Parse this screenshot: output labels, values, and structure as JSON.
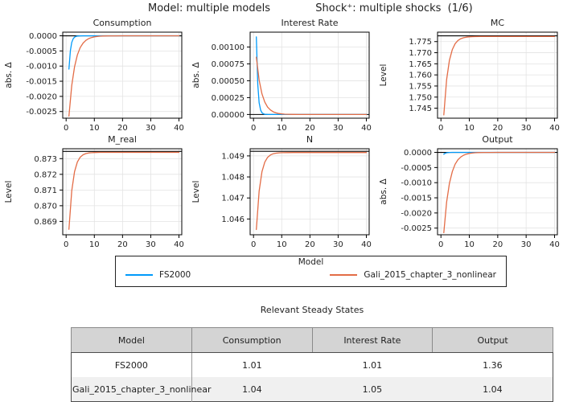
{
  "header": {
    "model_title": "Model: multiple models",
    "shock_title": "Shock⁺: multiple shocks  (1/6)"
  },
  "palette": {
    "blue": "#009AFA",
    "orange": "#E36C46",
    "steady_state": "#000000",
    "grid": "#E3E3E3",
    "frame": "#000000",
    "text": "#1f1f1f"
  },
  "legend": {
    "title": "Model",
    "position": "bottom",
    "entries": [
      {
        "label": "FS2000",
        "color": "blue"
      },
      {
        "label": "Gali_2015_chapter_3_nonlinear",
        "color": "orange"
      }
    ]
  },
  "table": {
    "title": "Relevant Steady States",
    "columns": [
      "Model",
      "Consumption",
      "Interest Rate",
      "Output"
    ],
    "rows": [
      [
        "FS2000",
        "1.01",
        "1.01",
        "1.36"
      ],
      [
        "Gali_2015_chapter_3_nonlinear",
        "1.04",
        "1.05",
        "1.04"
      ]
    ]
  },
  "chart_data": [
    {
      "type": "line",
      "title": "Consumption",
      "ylabel": "abs. Δ",
      "xticks": [
        0,
        10,
        20,
        30,
        40
      ],
      "xlim": [
        -1.2,
        41
      ],
      "yticks": [
        0,
        -0.0005,
        -0.001,
        -0.0015,
        -0.002,
        -0.0025
      ],
      "ytick_labels": [
        "0.0000",
        "-0.0005",
        "-0.0010",
        "-0.0015",
        "-0.0020",
        "-0.0025"
      ],
      "ylim": [
        -0.00272,
        0.00012
      ],
      "grid": true,
      "steady_state": 0,
      "series": [
        {
          "name": "FS2000",
          "color": "blue",
          "points": [
            [
              1,
              -0.0011
            ],
            [
              1.5,
              -0.00049
            ],
            [
              2,
              -0.00022
            ],
            [
              2.5,
              -9.8e-05
            ],
            [
              3,
              -4.4e-05
            ],
            [
              3.5,
              -2e-05
            ],
            [
              4,
              -8.8e-06
            ],
            [
              5,
              -1.8e-06
            ],
            [
              6,
              0
            ],
            [
              40,
              0
            ]
          ]
        },
        {
          "name": "Gali_2015_chapter_3_nonlinear",
          "color": "orange",
          "points": [
            [
              1,
              -0.00265
            ],
            [
              2,
              -0.00164
            ],
            [
              3,
              -0.00102
            ],
            [
              4,
              -0.00063
            ],
            [
              5,
              -0.00039
            ],
            [
              6,
              -0.000242
            ],
            [
              7,
              -0.00015
            ],
            [
              8,
              -9.3e-05
            ],
            [
              9,
              -5.8e-05
            ],
            [
              10,
              -3.6e-05
            ],
            [
              11,
              -2.2e-05
            ],
            [
              12,
              -1.4e-05
            ],
            [
              13,
              -8.6e-06
            ],
            [
              15,
              -3.3e-06
            ],
            [
              17,
              -1.3e-06
            ],
            [
              20,
              0
            ],
            [
              40,
              0
            ]
          ]
        }
      ]
    },
    {
      "type": "line",
      "title": "Interest Rate",
      "ylabel": "abs. Δ",
      "xticks": [
        0,
        10,
        20,
        30,
        40
      ],
      "xlim": [
        -1.2,
        41
      ],
      "yticks": [
        0,
        0.00025,
        0.0005,
        0.00075,
        0.001
      ],
      "ytick_labels": [
        "0.00000",
        "0.00025",
        "0.00050",
        "0.00075",
        "0.00100"
      ],
      "ylim": [
        -5.5e-05,
        0.00122
      ],
      "grid": true,
      "steady_state": 0,
      "series": [
        {
          "name": "FS2000",
          "color": "blue",
          "points": [
            [
              1,
              0.00115
            ],
            [
              1.5,
              0.000445
            ],
            [
              2,
              0.000172
            ],
            [
              2.5,
              6.67e-05
            ],
            [
              3,
              2.59e-05
            ],
            [
              3.5,
              1e-05
            ],
            [
              4,
              3.9e-06
            ],
            [
              5,
              6e-07
            ],
            [
              6,
              0
            ],
            [
              40,
              0
            ]
          ]
        },
        {
          "name": "Gali_2015_chapter_3_nonlinear",
          "color": "orange",
          "points": [
            [
              1,
              0.00085
            ],
            [
              2,
              0.00051
            ],
            [
              3,
              0.000306
            ],
            [
              4,
              0.000184
            ],
            [
              5,
              0.00011
            ],
            [
              6,
              6.61e-05
            ],
            [
              7,
              3.97e-05
            ],
            [
              8,
              2.38e-05
            ],
            [
              9,
              1.43e-05
            ],
            [
              10,
              8.6e-06
            ],
            [
              11,
              5.1e-06
            ],
            [
              12,
              3.1e-06
            ],
            [
              14,
              1.1e-06
            ],
            [
              16,
              4e-07
            ],
            [
              18,
              0
            ],
            [
              40,
              0
            ]
          ]
        }
      ]
    },
    {
      "type": "line",
      "title": "MC",
      "ylabel": "Level",
      "xticks": [
        0,
        10,
        20,
        30,
        40
      ],
      "xlim": [
        -1.2,
        41
      ],
      "yticks": [
        1.745,
        1.75,
        1.755,
        1.76,
        1.765,
        1.77,
        1.775
      ],
      "ytick_labels": [
        "1.745",
        "1.750",
        "1.755",
        "1.760",
        "1.765",
        "1.770",
        "1.775"
      ],
      "ylim": [
        1.7405,
        1.77925
      ],
      "grid": true,
      "steady_state": 1.7776,
      "series": [
        {
          "name": "Gali_2015_chapter_3_nonlinear",
          "color": "orange",
          "points": [
            [
              1,
              1.742
            ],
            [
              2,
              1.75788
            ],
            [
              3,
              1.76662
            ],
            [
              4,
              1.77143
            ],
            [
              5,
              1.77407
            ],
            [
              6,
              1.77552
            ],
            [
              7,
              1.77632
            ],
            [
              8,
              1.77676
            ],
            [
              9,
              1.777
            ],
            [
              10,
              1.77714
            ],
            [
              11,
              1.77721
            ],
            [
              12,
              1.77725
            ],
            [
              14,
              1.77729
            ],
            [
              16,
              1.7773
            ],
            [
              20,
              1.7773
            ],
            [
              40,
              1.7773
            ]
          ]
        }
      ]
    },
    {
      "type": "line",
      "title": "M_real",
      "ylabel": "Level",
      "xticks": [
        0,
        10,
        20,
        30,
        40
      ],
      "xlim": [
        -1.2,
        41
      ],
      "yticks": [
        0.869,
        0.87,
        0.871,
        0.872,
        0.873
      ],
      "ytick_labels": [
        "0.869",
        "0.870",
        "0.871",
        "0.872",
        "0.873"
      ],
      "ylim": [
        0.86815,
        0.87363
      ],
      "grid": true,
      "steady_state": 0.87346,
      "series": [
        {
          "name": "Gali_2015_chapter_3_nonlinear",
          "color": "orange",
          "points": [
            [
              1,
              0.8685
            ],
            [
              2,
              0.87095
            ],
            [
              3,
              0.872175
            ],
            [
              4,
              0.872788
            ],
            [
              5,
              0.873094
            ],
            [
              6,
              0.873247
            ],
            [
              7,
              0.873323
            ],
            [
              8,
              0.873362
            ],
            [
              9,
              0.873381
            ],
            [
              10,
              0.87339
            ],
            [
              12,
              0.873398
            ],
            [
              14,
              0.8734
            ],
            [
              20,
              0.8734
            ],
            [
              40,
              0.8734
            ]
          ]
        }
      ]
    },
    {
      "type": "line",
      "title": "N",
      "ylabel": "Level",
      "xticks": [
        0,
        10,
        20,
        30,
        40
      ],
      "xlim": [
        -1.2,
        41
      ],
      "yticks": [
        1.046,
        1.047,
        1.048,
        1.049
      ],
      "ytick_labels": [
        "1.046",
        "1.047",
        "1.048",
        "1.049"
      ],
      "ylim": [
        1.04525,
        1.04934
      ],
      "grid": true,
      "steady_state": 1.04922,
      "series": [
        {
          "name": "Gali_2015_chapter_3_nonlinear",
          "color": "orange",
          "points": [
            [
              1,
              1.0455
            ],
            [
              2,
              1.04733
            ],
            [
              3,
              1.048245
            ],
            [
              4,
              1.048703
            ],
            [
              5,
              1.048931
            ],
            [
              6,
              1.049046
            ],
            [
              7,
              1.049103
            ],
            [
              8,
              1.049131
            ],
            [
              9,
              1.049146
            ],
            [
              10,
              1.049153
            ],
            [
              12,
              1.049158
            ],
            [
              14,
              1.04916
            ],
            [
              20,
              1.04916
            ],
            [
              40,
              1.04916
            ]
          ]
        }
      ]
    },
    {
      "type": "line",
      "title": "Output",
      "ylabel": "abs. Δ",
      "xticks": [
        0,
        10,
        20,
        30,
        40
      ],
      "xlim": [
        -1.2,
        41
      ],
      "yticks": [
        0,
        -0.0005,
        -0.001,
        -0.0015,
        -0.002,
        -0.0025
      ],
      "ytick_labels": [
        "0.0000",
        "-0.0005",
        "-0.0010",
        "-0.0015",
        "-0.0020",
        "-0.0025"
      ],
      "ylim": [
        -0.00272,
        0.00012
      ],
      "grid": true,
      "steady_state": 0,
      "series": [
        {
          "name": "FS2000",
          "color": "blue",
          "points": [
            [
              1,
              -6e-05
            ],
            [
              1.5,
              -2.8e-05
            ],
            [
              2,
              -1.2e-05
            ],
            [
              3,
              -2.5e-06
            ],
            [
              4,
              0
            ],
            [
              40,
              0
            ]
          ]
        },
        {
          "name": "Gali_2015_chapter_3_nonlinear",
          "color": "orange",
          "points": [
            [
              1,
              -0.00265
            ],
            [
              2,
              -0.00164
            ],
            [
              3,
              -0.00102
            ],
            [
              4,
              -0.00063
            ],
            [
              5,
              -0.00039
            ],
            [
              6,
              -0.000242
            ],
            [
              7,
              -0.00015
            ],
            [
              8,
              -9.3e-05
            ],
            [
              9,
              -5.8e-05
            ],
            [
              10,
              -3.6e-05
            ],
            [
              11,
              -2.2e-05
            ],
            [
              12,
              -1.4e-05
            ],
            [
              13,
              -8.6e-06
            ],
            [
              15,
              -3.3e-06
            ],
            [
              17,
              -1.3e-06
            ],
            [
              20,
              0
            ],
            [
              40,
              0
            ]
          ]
        }
      ]
    }
  ]
}
